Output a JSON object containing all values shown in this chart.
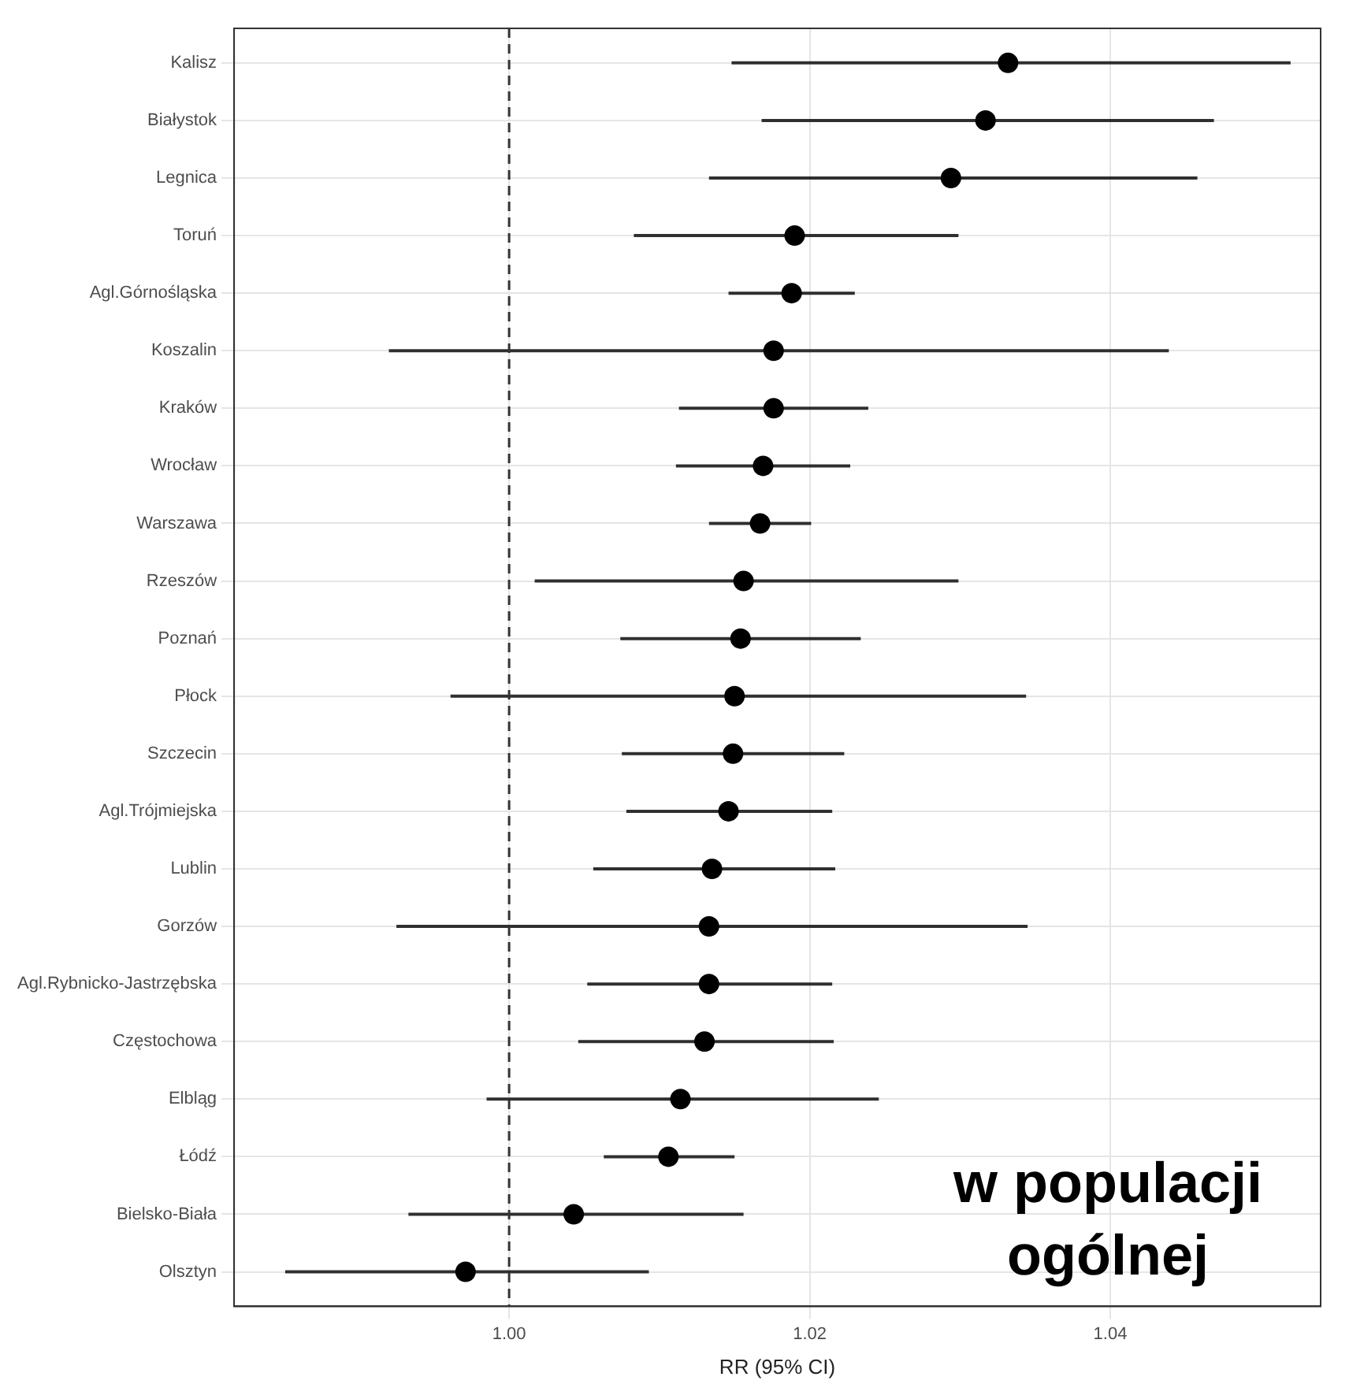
{
  "chart_data": {
    "type": "scatter",
    "orientation": "horizontal",
    "xlabel": "RR (95% CI)",
    "categories": [
      "Kalisz",
      "Białystok",
      "Legnica",
      "Toruń",
      "Agl.Górnośląska",
      "Koszalin",
      "Kraków",
      "Wrocław",
      "Warszawa",
      "Rzeszów",
      "Poznań",
      "Płock",
      "Szczecin",
      "Agl.Trójmiejska",
      "Lublin",
      "Gorzów",
      "Agl.Rybnicko-Jastrzębska",
      "Częstochowa",
      "Elbląg",
      "Łódź",
      "Bielsko-Biała",
      "Olsztyn"
    ],
    "values": [
      1.0332,
      1.0317,
      1.0294,
      1.019,
      1.0188,
      1.0176,
      1.0176,
      1.0169,
      1.0167,
      1.0156,
      1.0154,
      1.015,
      1.0149,
      1.0146,
      1.0135,
      1.0133,
      1.0133,
      1.013,
      1.0114,
      1.0106,
      1.0043,
      0.9971
    ],
    "errors": [
      [
        1.0148,
        1.052
      ],
      [
        1.0168,
        1.0469
      ],
      [
        1.0133,
        1.0458
      ],
      [
        1.0083,
        1.0299
      ],
      [
        1.0146,
        1.023
      ],
      [
        0.992,
        1.0439
      ],
      [
        1.0113,
        1.0239
      ],
      [
        1.0111,
        1.0227
      ],
      [
        1.0133,
        1.0201
      ],
      [
        1.0017,
        1.0299
      ],
      [
        1.0074,
        1.0234
      ],
      [
        0.9961,
        1.0344
      ],
      [
        1.0075,
        1.0223
      ],
      [
        1.0078,
        1.0215
      ],
      [
        1.0056,
        1.0217
      ],
      [
        0.9925,
        1.0345
      ],
      [
        1.0052,
        1.0215
      ],
      [
        1.0046,
        1.0216
      ],
      [
        0.9985,
        1.0246
      ],
      [
        1.0063,
        1.015
      ],
      [
        0.9933,
        1.0156
      ],
      [
        0.9851,
        1.0093
      ]
    ],
    "color": "#000000",
    "xlim": [
      0.9817,
      1.054
    ],
    "xticks": [
      {
        "value": 1,
        "label": "1.00"
      },
      {
        "value": 1.02,
        "label": "1.02"
      },
      {
        "value": 1.04,
        "label": "1.04"
      }
    ],
    "ref_lines": [
      {
        "axis": "x",
        "value": 1,
        "line_style": "dashed",
        "color": "#333333"
      }
    ],
    "annotations": [
      "w populacji ogólnej"
    ],
    "grid": true,
    "marker": "circle"
  }
}
